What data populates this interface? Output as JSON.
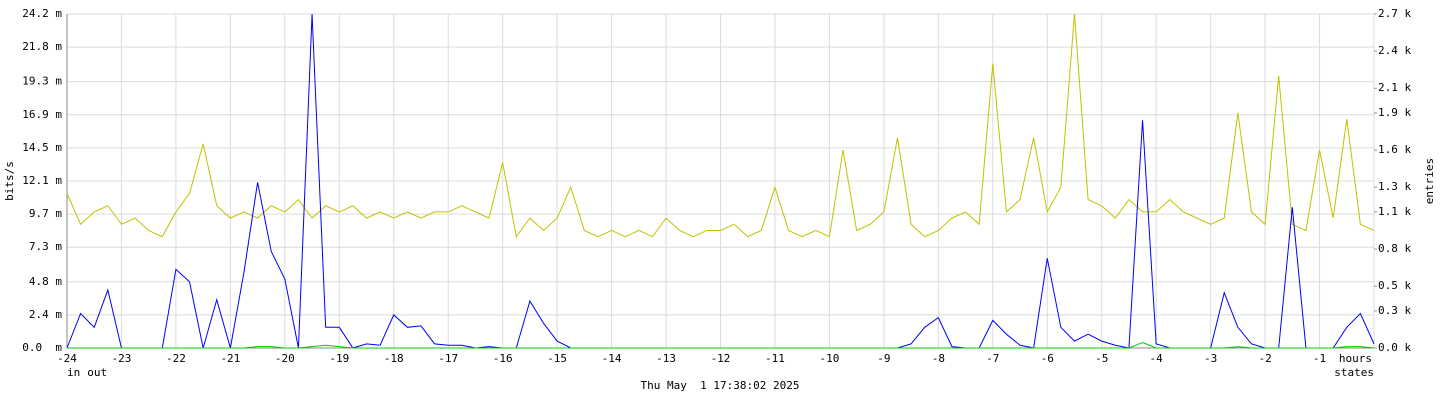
{
  "chart_data": {
    "type": "line",
    "y_label": "bits/s",
    "y2_label": "entries",
    "footer": "Thu May  1 17:38:02 2025",
    "x": [
      -24,
      -23.75,
      -23.5,
      -23.25,
      -23,
      -22.75,
      -22.5,
      -22.25,
      -22,
      -21.75,
      -21.5,
      -21.25,
      -21,
      -20.75,
      -20.5,
      -20.25,
      -20,
      -19.75,
      -19.5,
      -19.25,
      -19,
      -18.75,
      -18.5,
      -18.25,
      -18,
      -17.75,
      -17.5,
      -17.25,
      -17,
      -16.75,
      -16.5,
      -16.25,
      -16,
      -15.75,
      -15.5,
      -15.25,
      -15,
      -14.75,
      -14.5,
      -14.25,
      -14,
      -13.75,
      -13.5,
      -13.25,
      -13,
      -12.75,
      -12.5,
      -12.25,
      -12,
      -11.75,
      -11.5,
      -11.25,
      -11,
      -10.75,
      -10.5,
      -10.25,
      -10,
      -9.75,
      -9.5,
      -9.25,
      -9,
      -8.75,
      -8.5,
      -8.25,
      -8,
      -7.75,
      -7.5,
      -7.25,
      -7,
      -6.75,
      -6.5,
      -6.25,
      -6,
      -5.75,
      -5.5,
      -5.25,
      -5,
      -4.75,
      -4.5,
      -4.25,
      -4,
      -3.75,
      -3.5,
      -3.25,
      -3,
      -2.75,
      -2.5,
      -2.25,
      -2,
      -1.75,
      -1.5,
      -1.25,
      -1,
      -0.75,
      -0.5,
      -0.25,
      0
    ],
    "xlim": [
      -24,
      0
    ],
    "xticks": [
      -24,
      -23,
      -22,
      -21,
      -20,
      -19,
      -18,
      -17,
      -16,
      -15,
      -14,
      -13,
      -12,
      -11,
      -10,
      -9,
      -8,
      -7,
      -6,
      -5,
      -4,
      -3,
      -2,
      -1,
      {
        "value": 0,
        "label": "hours"
      }
    ],
    "ylim": [
      0,
      0.0242
    ],
    "yticks": [
      {
        "value": 0,
        "label": "0.0  m"
      },
      {
        "value": 0.0024,
        "label": "2.4 m"
      },
      {
        "value": 0.0048,
        "label": "4.8 m"
      },
      {
        "value": 0.0073,
        "label": "7.3 m"
      },
      {
        "value": 0.0097,
        "label": "9.7 m"
      },
      {
        "value": 0.0121,
        "label": "12.1 m"
      },
      {
        "value": 0.0145,
        "label": "14.5 m"
      },
      {
        "value": 0.0169,
        "label": "16.9 m"
      },
      {
        "value": 0.0193,
        "label": "19.3 m"
      },
      {
        "value": 0.0218,
        "label": "21.8 m"
      },
      {
        "value": 0.0242,
        "label": "24.2 m"
      }
    ],
    "y2lim": [
      0,
      2700
    ],
    "y2ticks": [
      {
        "value": 0,
        "label": "0.0 k"
      },
      {
        "value": 300,
        "label": "0.3 k"
      },
      {
        "value": 500,
        "label": "0.5 k"
      },
      {
        "value": 800,
        "label": "0.8 k"
      },
      {
        "value": 1100,
        "label": "1.1 k"
      },
      {
        "value": 1300,
        "label": "1.3 k"
      },
      {
        "value": 1600,
        "label": "1.6 k"
      },
      {
        "value": 1900,
        "label": "1.9 k"
      },
      {
        "value": 2100,
        "label": "2.1 k"
      },
      {
        "value": 2400,
        "label": "2.4 k"
      },
      {
        "value": 2700,
        "label": "2.7 k"
      }
    ],
    "grid": true,
    "series": [
      {
        "name": "in",
        "color": "#00cc00",
        "values": [
          0,
          0,
          0,
          0,
          0,
          0,
          0,
          0,
          0,
          0,
          0,
          0,
          0,
          0,
          0.0001,
          0.0001,
          0,
          0,
          0.0001,
          0.0002,
          0.0001,
          0,
          0,
          0,
          0,
          0,
          0,
          0,
          0,
          0,
          0,
          0,
          0,
          0,
          0,
          0,
          0,
          0,
          0,
          0,
          0,
          0,
          0,
          0,
          0,
          0,
          0,
          0,
          0,
          0,
          0,
          0,
          0,
          0,
          0,
          0,
          0,
          0,
          0,
          0,
          0,
          0,
          0,
          0,
          0,
          0,
          0,
          0,
          0,
          0,
          0,
          0,
          0,
          0,
          0,
          0,
          0,
          0,
          0,
          0.0004,
          0,
          0,
          0,
          0,
          0,
          0,
          0.0001,
          0,
          0,
          0,
          0,
          0,
          0,
          0,
          0.0001,
          0.0001,
          0
        ]
      },
      {
        "name": "out",
        "color": "#0000ff",
        "values": [
          0,
          0.0025,
          0.0015,
          0.0042,
          0,
          0,
          0,
          0,
          0.0057,
          0.0048,
          0,
          0.0035,
          0,
          0.0055,
          0.012,
          0.007,
          0.005,
          0,
          0.0242,
          0.0015,
          0.0015,
          0,
          0.0003,
          0.0002,
          0.0024,
          0.0015,
          0.0016,
          0.0003,
          0.0002,
          0.0002,
          0,
          0.0001,
          0,
          0,
          0.0034,
          0.0018,
          0.0005,
          0,
          0,
          0,
          0,
          0,
          0,
          0,
          0,
          0,
          0,
          0,
          0,
          0,
          0,
          0,
          0,
          0,
          0,
          0,
          0,
          0,
          0,
          0,
          0,
          0,
          0.0003,
          0.0015,
          0.0022,
          0.0001,
          0,
          0,
          0.002,
          0.001,
          0.0002,
          0,
          0.0065,
          0.0015,
          0.0005,
          0.001,
          0.0005,
          0.0002,
          0,
          0.0165,
          0.0003,
          0,
          0,
          0,
          0,
          0.004,
          0.0015,
          0.0003,
          0,
          0,
          0.0102,
          0,
          0,
          0,
          0.0015,
          0.0025,
          0.0003
        ]
      },
      {
        "name": "states",
        "color": "#c2c200",
        "axis": "y2",
        "values": [
          1250,
          1000,
          1100,
          1150,
          1000,
          1050,
          950,
          900,
          1100,
          1250,
          1650,
          1150,
          1050,
          1100,
          1050,
          1150,
          1100,
          1200,
          1050,
          1150,
          1100,
          1150,
          1050,
          1100,
          1050,
          1100,
          1050,
          1100,
          1100,
          1150,
          1100,
          1050,
          1500,
          900,
          1050,
          950,
          1050,
          1300,
          950,
          900,
          950,
          900,
          950,
          900,
          1050,
          950,
          900,
          950,
          950,
          1000,
          900,
          950,
          1300,
          950,
          900,
          950,
          900,
          1600,
          950,
          1000,
          1100,
          1700,
          1000,
          900,
          950,
          1050,
          1100,
          1000,
          2300,
          1100,
          1200,
          1700,
          1100,
          1300,
          2700,
          1200,
          1150,
          1050,
          1200,
          1100,
          1100,
          1200,
          1100,
          1050,
          1000,
          1050,
          1900,
          1100,
          1000,
          2200,
          1000,
          950,
          1600,
          1050,
          1850,
          1000,
          950
        ]
      }
    ]
  }
}
